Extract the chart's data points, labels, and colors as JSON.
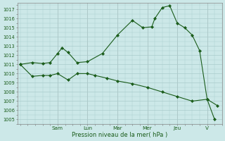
{
  "xlabel": "Pression niveau de la mer( hPa )",
  "background_color": "#cce8e8",
  "grid_color": "#aacccc",
  "line_color": "#1a5c1a",
  "marker_color": "#1a5c1a",
  "ylim": [
    1004.5,
    1017.7
  ],
  "yticks": [
    1005,
    1006,
    1007,
    1008,
    1009,
    1010,
    1011,
    1012,
    1013,
    1014,
    1015,
    1016,
    1017
  ],
  "x_day_labels": [
    "Sam",
    "Lun",
    "Mar",
    "Mer",
    "Jeu",
    "V"
  ],
  "x_day_positions": [
    2.5,
    4.5,
    6.5,
    8.5,
    10.5,
    12.5
  ],
  "xlim": [
    -0.2,
    13.5
  ],
  "series1_x": [
    0,
    0.8,
    1.5,
    2.0,
    2.5,
    3.2,
    3.8,
    4.5,
    5.0,
    5.8,
    6.5,
    7.5,
    8.5,
    9.5,
    10.5,
    11.5,
    12.5,
    13.2
  ],
  "series1_y": [
    1011.0,
    1009.7,
    1009.8,
    1009.8,
    1010.0,
    1009.3,
    1010.0,
    1010.0,
    1009.8,
    1009.5,
    1009.2,
    1008.9,
    1008.5,
    1008.0,
    1007.5,
    1007.0,
    1007.2,
    1006.5
  ],
  "series2_x": [
    0,
    0.8,
    1.5,
    2.0,
    2.5,
    2.8,
    3.2,
    3.8,
    4.5,
    5.5,
    6.5,
    7.5,
    8.2,
    8.8,
    9.0,
    9.5,
    10.0,
    10.5,
    11.0,
    11.5,
    12.0,
    12.5,
    13.0
  ],
  "series2_y": [
    1011.0,
    1011.2,
    1011.1,
    1011.2,
    1012.2,
    1012.8,
    1012.3,
    1011.2,
    1011.3,
    1012.2,
    1014.2,
    1015.8,
    1015.0,
    1015.1,
    1016.0,
    1017.2,
    1017.4,
    1015.5,
    1015.0,
    1014.2,
    1012.5,
    1007.2,
    1005.0
  ],
  "font_size_ytick": 4.8,
  "font_size_xtick": 5.2,
  "font_size_xlabel": 6.0,
  "linewidth": 0.8,
  "markersize": 2.2
}
